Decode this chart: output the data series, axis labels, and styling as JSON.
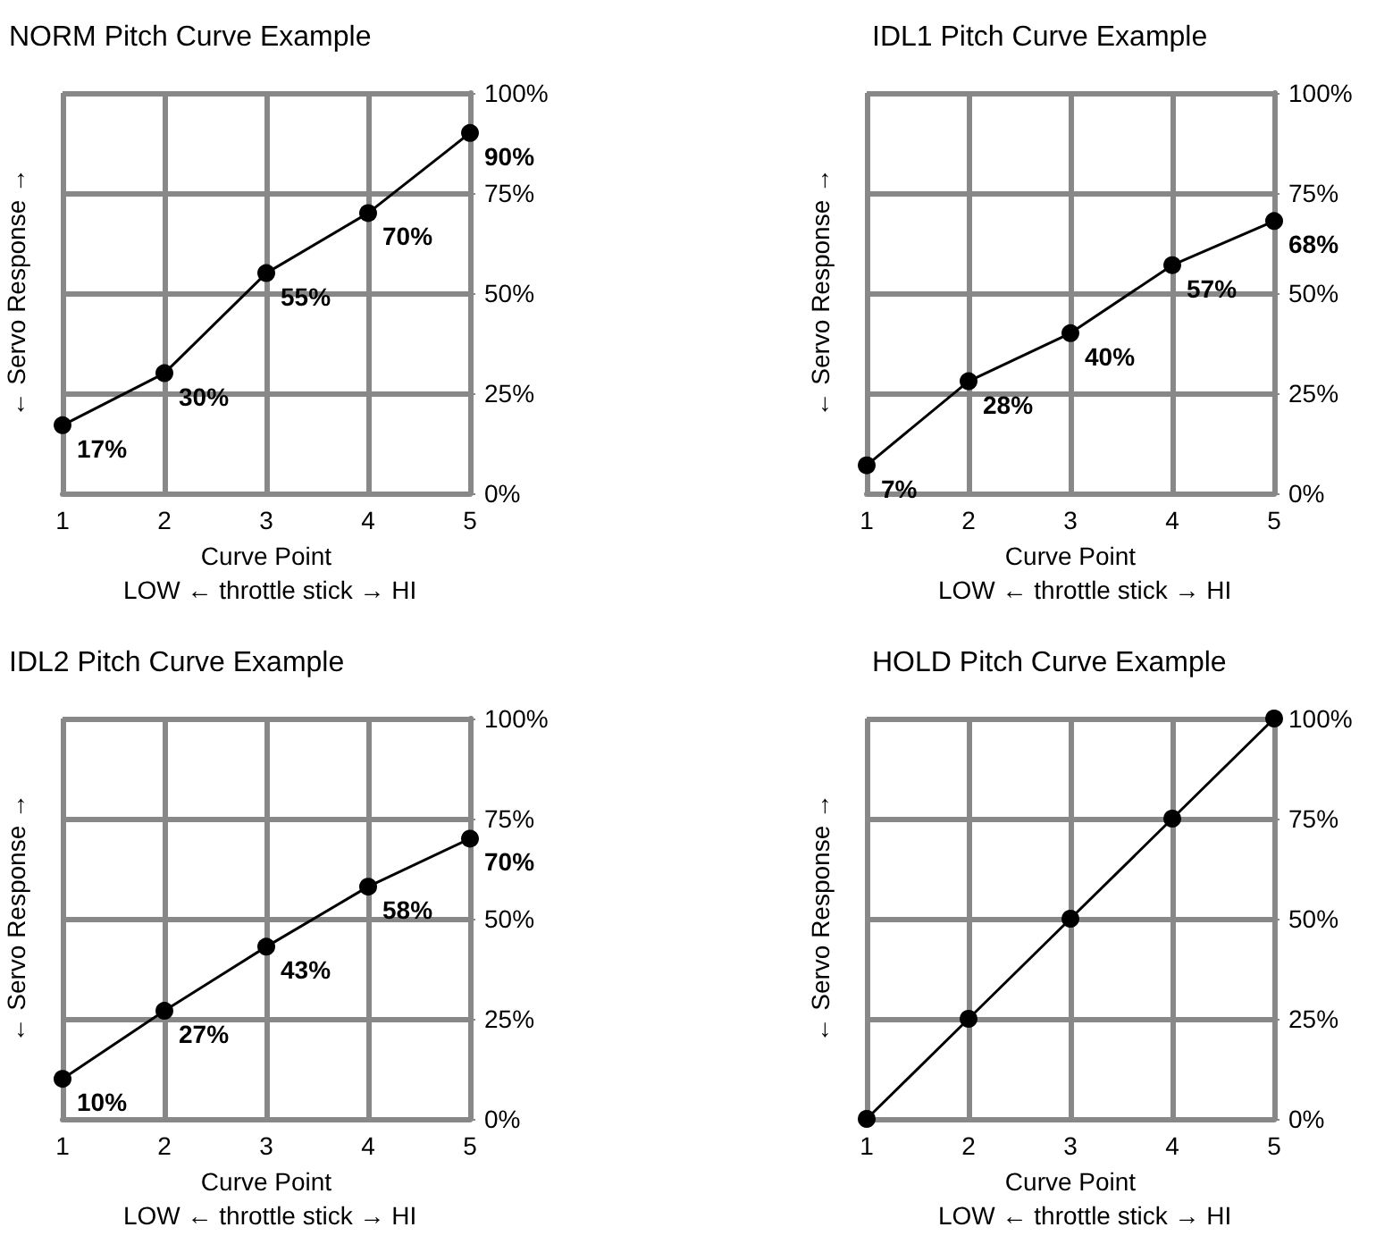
{
  "chart_data": [
    {
      "type": "line",
      "title": "NORM Pitch Curve Example",
      "xlabel": "Curve Point",
      "ylabel": "← Servo Response →",
      "annotations": [
        "LOW ← throttle stick → HI"
      ],
      "categories": [
        "1",
        "2",
        "3",
        "4",
        "5"
      ],
      "series": [
        {
          "color": "#000000",
          "values": [
            17,
            30,
            55,
            70,
            90
          ],
          "value_labels": [
            "17%",
            "30%",
            "55%",
            "70%",
            "90%"
          ]
        }
      ],
      "ylim": [
        0,
        100
      ],
      "yticks": [
        {
          "value": 0,
          "label": "0%"
        },
        {
          "value": 25,
          "label": "25%"
        },
        {
          "value": 50,
          "label": "50%"
        },
        {
          "value": 75,
          "label": "75%"
        },
        {
          "value": 100,
          "label": "100%"
        }
      ],
      "grid": true,
      "marker": "circle"
    },
    {
      "type": "line",
      "title": "IDL1 Pitch Curve Example",
      "xlabel": "Curve Point",
      "ylabel": "← Servo Response →",
      "annotations": [
        "LOW ← throttle stick → HI"
      ],
      "categories": [
        "1",
        "2",
        "3",
        "4",
        "5"
      ],
      "series": [
        {
          "color": "#000000",
          "values": [
            7,
            28,
            40,
            57,
            68
          ],
          "value_labels": [
            "7%",
            "28%",
            "40%",
            "57%",
            "68%"
          ]
        }
      ],
      "ylim": [
        0,
        100
      ],
      "yticks": [
        {
          "value": 0,
          "label": "0%"
        },
        {
          "value": 25,
          "label": "25%"
        },
        {
          "value": 50,
          "label": "50%"
        },
        {
          "value": 75,
          "label": "75%"
        },
        {
          "value": 100,
          "label": "100%"
        }
      ],
      "grid": true,
      "marker": "circle"
    },
    {
      "type": "line",
      "title": "IDL2 Pitch Curve Example",
      "xlabel": "Curve Point",
      "ylabel": "← Servo Response →",
      "annotations": [
        "LOW ← throttle stick → HI"
      ],
      "categories": [
        "1",
        "2",
        "3",
        "4",
        "5"
      ],
      "series": [
        {
          "color": "#000000",
          "values": [
            10,
            27,
            43,
            58,
            70
          ],
          "value_labels": [
            "10%",
            "27%",
            "43%",
            "58%",
            "70%"
          ]
        }
      ],
      "ylim": [
        0,
        100
      ],
      "yticks": [
        {
          "value": 0,
          "label": "0%"
        },
        {
          "value": 25,
          "label": "25%"
        },
        {
          "value": 50,
          "label": "50%"
        },
        {
          "value": 75,
          "label": "75%"
        },
        {
          "value": 100,
          "label": "100%"
        }
      ],
      "grid": true,
      "marker": "circle"
    },
    {
      "type": "line",
      "title": "HOLD Pitch Curve Example",
      "xlabel": "Curve Point",
      "ylabel": "← Servo Response →",
      "annotations": [
        "LOW ← throttle stick → HI"
      ],
      "categories": [
        "1",
        "2",
        "3",
        "4",
        "5"
      ],
      "series": [
        {
          "color": "#000000",
          "values": [
            0,
            25,
            50,
            75,
            100
          ]
        }
      ],
      "ylim": [
        0,
        100
      ],
      "yticks": [
        {
          "value": 0,
          "label": "0%"
        },
        {
          "value": 25,
          "label": "25%"
        },
        {
          "value": 50,
          "label": "50%"
        },
        {
          "value": 75,
          "label": "75%"
        },
        {
          "value": 100,
          "label": "100%"
        }
      ],
      "grid": true,
      "marker": "circle"
    }
  ]
}
